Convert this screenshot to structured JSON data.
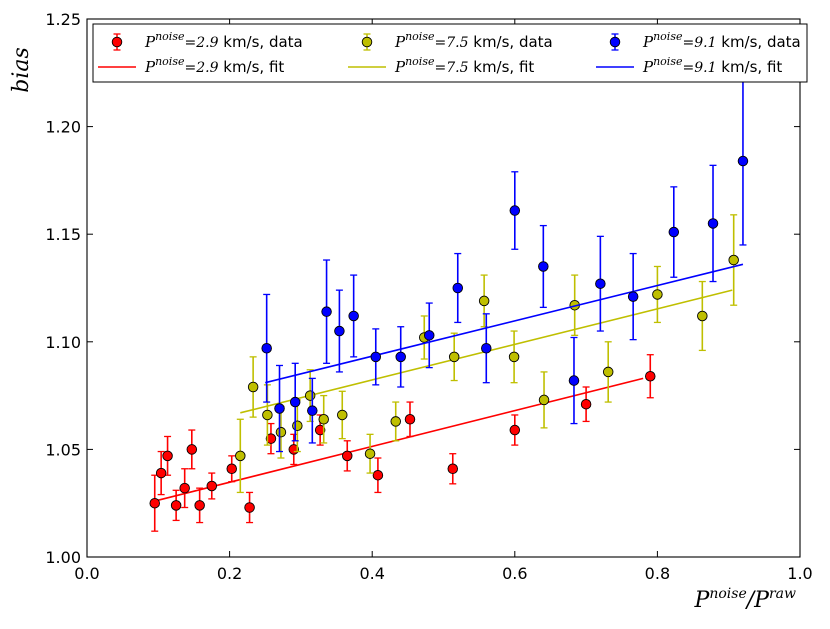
{
  "chart_data": {
    "type": "scatter",
    "xlabel": "P^noise / P^raw",
    "ylabel": "bias",
    "xlim": [
      0.0,
      1.0
    ],
    "ylim": [
      1.0,
      1.25
    ],
    "x_ticks": [
      0.0,
      0.2,
      0.4,
      0.6,
      0.8,
      1.0
    ],
    "x_tick_labels": [
      "0.0",
      "0.2",
      "0.4",
      "0.6",
      "0.8",
      "1.0"
    ],
    "y_ticks": [
      1.0,
      1.05,
      1.1,
      1.15,
      1.2,
      1.25
    ],
    "y_tick_labels": [
      "1.00",
      "1.05",
      "1.10",
      "1.15",
      "1.20",
      "1.25"
    ],
    "grid": false,
    "legend_position": "top",
    "series": [
      {
        "name": "P^noise =2.9 km/s, data",
        "fit_name": "P^noise =2.9 km/s, fit",
        "legend_prefix": "P",
        "legend_sup": "noise",
        "legend_value": "=2.9",
        "legend_unit": "km/s",
        "color": "#ff0000",
        "line_color": "#ff0000",
        "points": [
          {
            "x": 0.095,
            "y": 1.025,
            "err": 0.013
          },
          {
            "x": 0.104,
            "y": 1.039,
            "err": 0.01
          },
          {
            "x": 0.113,
            "y": 1.047,
            "err": 0.009
          },
          {
            "x": 0.125,
            "y": 1.024,
            "err": 0.007
          },
          {
            "x": 0.137,
            "y": 1.032,
            "err": 0.009
          },
          {
            "x": 0.147,
            "y": 1.05,
            "err": 0.009
          },
          {
            "x": 0.158,
            "y": 1.024,
            "err": 0.008
          },
          {
            "x": 0.175,
            "y": 1.033,
            "err": 0.006
          },
          {
            "x": 0.203,
            "y": 1.041,
            "err": 0.006
          },
          {
            "x": 0.228,
            "y": 1.023,
            "err": 0.007
          },
          {
            "x": 0.258,
            "y": 1.055,
            "err": 0.007
          },
          {
            "x": 0.29,
            "y": 1.05,
            "err": 0.007
          },
          {
            "x": 0.327,
            "y": 1.059,
            "err": 0.007
          },
          {
            "x": 0.365,
            "y": 1.047,
            "err": 0.007
          },
          {
            "x": 0.408,
            "y": 1.038,
            "err": 0.008
          },
          {
            "x": 0.453,
            "y": 1.064,
            "err": 0.008
          },
          {
            "x": 0.513,
            "y": 1.041,
            "err": 0.007
          },
          {
            "x": 0.6,
            "y": 1.059,
            "err": 0.007
          },
          {
            "x": 0.7,
            "y": 1.071,
            "err": 0.008
          },
          {
            "x": 0.79,
            "y": 1.084,
            "err": 0.01
          }
        ],
        "fit": [
          [
            0.095,
            1.026
          ],
          [
            0.78,
            1.083
          ]
        ]
      },
      {
        "name": "P^noise =7.5 km/s, data",
        "fit_name": "P^noise =7.5 km/s, fit",
        "legend_prefix": "P",
        "legend_sup": "noise",
        "legend_value": "=7.5",
        "legend_unit": "km/s",
        "color": "#bfbf00",
        "line_color": "#bfbf00",
        "points": [
          {
            "x": 0.215,
            "y": 1.047,
            "err": 0.017
          },
          {
            "x": 0.233,
            "y": 1.079,
            "err": 0.014
          },
          {
            "x": 0.253,
            "y": 1.066,
            "err": 0.014
          },
          {
            "x": 0.272,
            "y": 1.058,
            "err": 0.012
          },
          {
            "x": 0.295,
            "y": 1.061,
            "err": 0.012
          },
          {
            "x": 0.313,
            "y": 1.075,
            "err": 0.012
          },
          {
            "x": 0.332,
            "y": 1.064,
            "err": 0.011
          },
          {
            "x": 0.358,
            "y": 1.066,
            "err": 0.011
          },
          {
            "x": 0.397,
            "y": 1.048,
            "err": 0.009
          },
          {
            "x": 0.433,
            "y": 1.063,
            "err": 0.009
          },
          {
            "x": 0.473,
            "y": 1.102,
            "err": 0.01
          },
          {
            "x": 0.515,
            "y": 1.093,
            "err": 0.011
          },
          {
            "x": 0.557,
            "y": 1.119,
            "err": 0.012
          },
          {
            "x": 0.599,
            "y": 1.093,
            "err": 0.012
          },
          {
            "x": 0.641,
            "y": 1.073,
            "err": 0.013
          },
          {
            "x": 0.684,
            "y": 1.117,
            "err": 0.014
          },
          {
            "x": 0.731,
            "y": 1.086,
            "err": 0.014
          },
          {
            "x": 0.8,
            "y": 1.122,
            "err": 0.013
          },
          {
            "x": 0.863,
            "y": 1.112,
            "err": 0.016
          },
          {
            "x": 0.907,
            "y": 1.138,
            "err": 0.021
          }
        ],
        "fit": [
          [
            0.215,
            1.067
          ],
          [
            0.905,
            1.124
          ]
        ]
      },
      {
        "name": "P^noise =9.1 km/s, data",
        "fit_name": "P^noise =9.1 km/s, fit",
        "legend_prefix": "P",
        "legend_sup": "noise",
        "legend_value": "=9.1",
        "legend_unit": "km/s",
        "color": "#0000ff",
        "line_color": "#0000ff",
        "points": [
          {
            "x": 0.252,
            "y": 1.097,
            "err": 0.025
          },
          {
            "x": 0.27,
            "y": 1.069,
            "err": 0.02
          },
          {
            "x": 0.292,
            "y": 1.072,
            "err": 0.018
          },
          {
            "x": 0.316,
            "y": 1.068,
            "err": 0.015
          },
          {
            "x": 0.336,
            "y": 1.114,
            "err": 0.024
          },
          {
            "x": 0.354,
            "y": 1.105,
            "err": 0.019
          },
          {
            "x": 0.374,
            "y": 1.112,
            "err": 0.019
          },
          {
            "x": 0.405,
            "y": 1.093,
            "err": 0.013
          },
          {
            "x": 0.44,
            "y": 1.093,
            "err": 0.014
          },
          {
            "x": 0.48,
            "y": 1.103,
            "err": 0.015
          },
          {
            "x": 0.52,
            "y": 1.125,
            "err": 0.016
          },
          {
            "x": 0.56,
            "y": 1.097,
            "err": 0.016
          },
          {
            "x": 0.6,
            "y": 1.161,
            "err": 0.018
          },
          {
            "x": 0.64,
            "y": 1.135,
            "err": 0.019
          },
          {
            "x": 0.683,
            "y": 1.082,
            "err": 0.02
          },
          {
            "x": 0.72,
            "y": 1.127,
            "err": 0.022
          },
          {
            "x": 0.766,
            "y": 1.121,
            "err": 0.02
          },
          {
            "x": 0.823,
            "y": 1.151,
            "err": 0.021
          },
          {
            "x": 0.878,
            "y": 1.155,
            "err": 0.027
          },
          {
            "x": 0.92,
            "y": 1.184,
            "err": 0.039
          }
        ],
        "fit": [
          [
            0.25,
            1.081
          ],
          [
            0.92,
            1.136
          ]
        ]
      }
    ]
  }
}
